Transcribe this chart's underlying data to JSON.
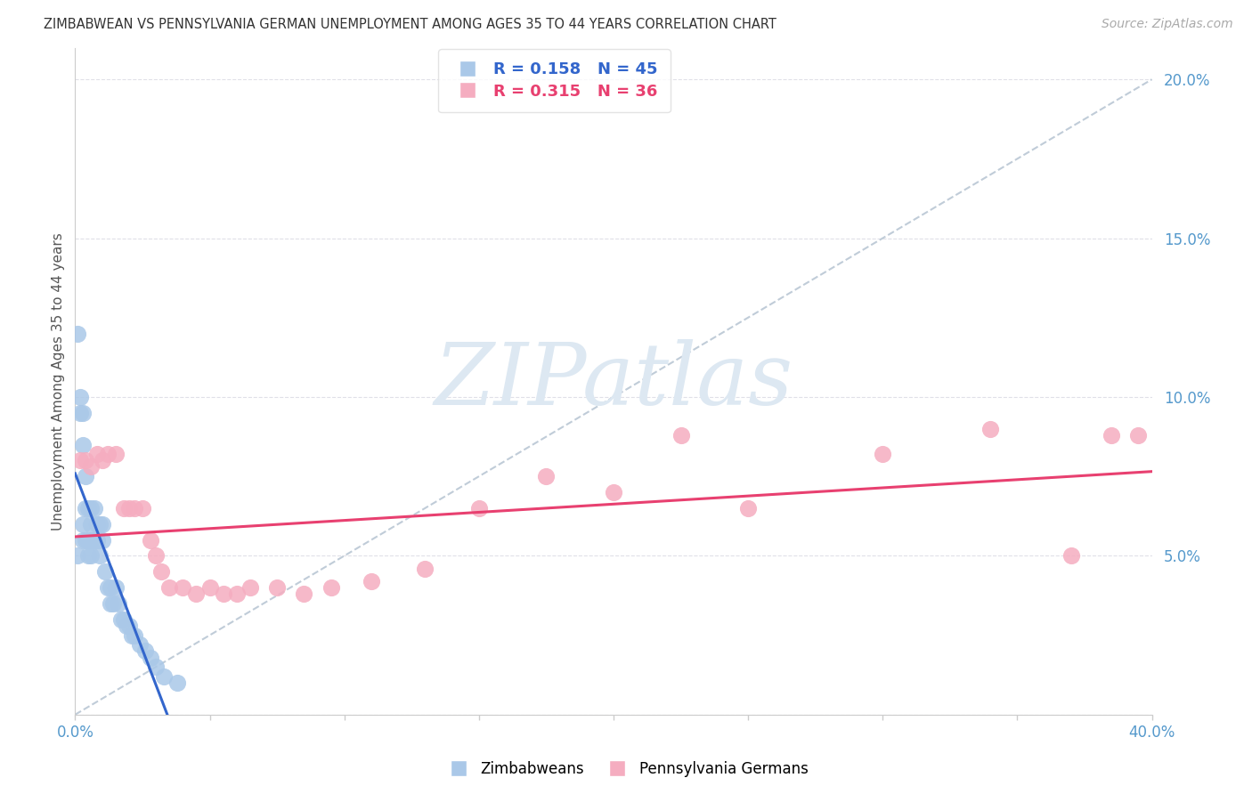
{
  "title": "ZIMBABWEAN VS PENNSYLVANIA GERMAN UNEMPLOYMENT AMONG AGES 35 TO 44 YEARS CORRELATION CHART",
  "source": "Source: ZipAtlas.com",
  "ylabel": "Unemployment Among Ages 35 to 44 years",
  "xlim": [
    0.0,
    0.4
  ],
  "ylim": [
    0.0,
    0.21
  ],
  "xtick_positions": [
    0.0,
    0.05,
    0.1,
    0.15,
    0.2,
    0.25,
    0.3,
    0.35,
    0.4
  ],
  "ytick_positions": [
    0.0,
    0.05,
    0.1,
    0.15,
    0.2
  ],
  "zimbabwean_R": 0.158,
  "zimbabwean_N": 45,
  "pennsylvania_R": 0.315,
  "pennsylvania_N": 36,
  "zimbabwean_color": "#aac8e8",
  "pennsylvania_color": "#f5adc0",
  "zimbabwean_line_color": "#3366cc",
  "pennsylvania_line_color": "#e84070",
  "ref_line_color": "#c0ccd8",
  "watermark_color": "#dde8f2",
  "tick_color": "#5599cc",
  "background_color": "#ffffff",
  "zimbabwean_x": [
    0.001,
    0.001,
    0.002,
    0.002,
    0.003,
    0.003,
    0.003,
    0.003,
    0.004,
    0.004,
    0.004,
    0.005,
    0.005,
    0.005,
    0.006,
    0.006,
    0.006,
    0.006,
    0.007,
    0.007,
    0.008,
    0.008,
    0.009,
    0.009,
    0.01,
    0.01,
    0.011,
    0.012,
    0.013,
    0.013,
    0.014,
    0.015,
    0.016,
    0.017,
    0.018,
    0.019,
    0.02,
    0.021,
    0.022,
    0.024,
    0.026,
    0.028,
    0.03,
    0.033,
    0.038
  ],
  "zimbabwean_y": [
    0.12,
    0.05,
    0.1,
    0.095,
    0.095,
    0.085,
    0.06,
    0.055,
    0.075,
    0.065,
    0.055,
    0.065,
    0.055,
    0.05,
    0.065,
    0.06,
    0.055,
    0.05,
    0.065,
    0.055,
    0.06,
    0.055,
    0.06,
    0.05,
    0.06,
    0.055,
    0.045,
    0.04,
    0.04,
    0.035,
    0.035,
    0.04,
    0.035,
    0.03,
    0.03,
    0.028,
    0.028,
    0.025,
    0.025,
    0.022,
    0.02,
    0.018,
    0.015,
    0.012,
    0.01
  ],
  "pennsylvania_x": [
    0.002,
    0.004,
    0.006,
    0.008,
    0.01,
    0.012,
    0.015,
    0.018,
    0.02,
    0.022,
    0.025,
    0.028,
    0.03,
    0.032,
    0.035,
    0.04,
    0.045,
    0.05,
    0.055,
    0.06,
    0.065,
    0.075,
    0.085,
    0.095,
    0.11,
    0.13,
    0.15,
    0.175,
    0.2,
    0.225,
    0.25,
    0.3,
    0.34,
    0.37,
    0.385,
    0.395
  ],
  "pennsylvania_y": [
    0.08,
    0.08,
    0.078,
    0.082,
    0.08,
    0.082,
    0.082,
    0.065,
    0.065,
    0.065,
    0.065,
    0.055,
    0.05,
    0.045,
    0.04,
    0.04,
    0.038,
    0.04,
    0.038,
    0.038,
    0.04,
    0.04,
    0.038,
    0.04,
    0.042,
    0.046,
    0.065,
    0.075,
    0.07,
    0.088,
    0.065,
    0.082,
    0.09,
    0.05,
    0.088,
    0.088
  ]
}
